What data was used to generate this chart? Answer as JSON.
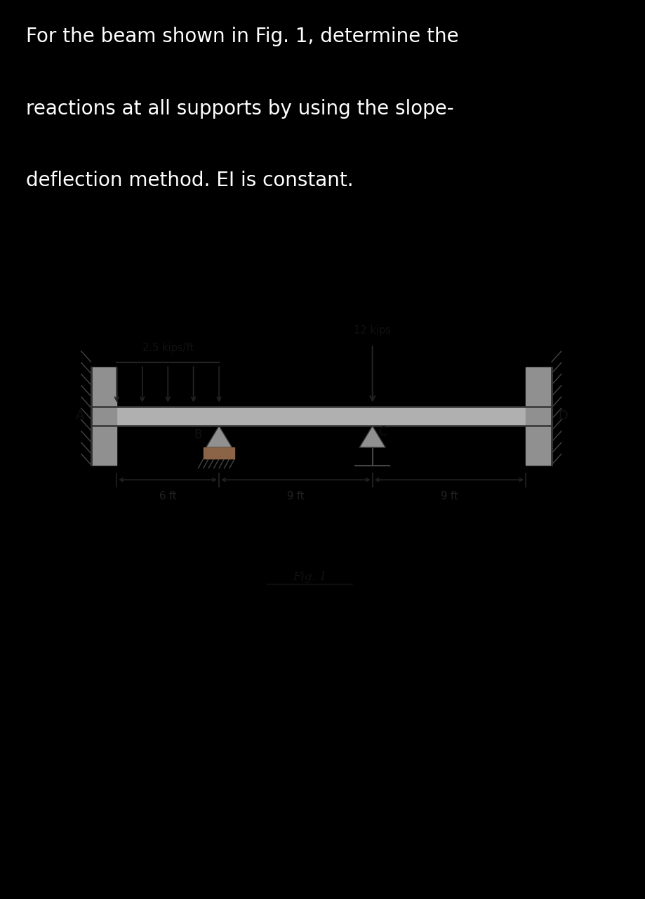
{
  "bg_color": "#000000",
  "text_color": "#ffffff",
  "header_text_line1": "For the beam shown in Fig. 1, determine the",
  "header_text_line2": "reactions at all supports by using the slope-",
  "header_text_line3": "deflection method. EI is constant.",
  "header_fontsize": 20,
  "diagram_bg": "#d4cfc9",
  "beam_color": "#999999",
  "wall_color_A": "#808080",
  "wall_color_D": "#808080",
  "fig_caption": "Fig. 1",
  "dist_load_label": "2.5 kips/ft",
  "point_load_label": "12 kips",
  "label_A": "A",
  "label_B": "B",
  "label_C": "C",
  "label_D": "D",
  "dim_AB": "6 ft",
  "dim_BC": "9 ft",
  "dim_CD": "9 ft",
  "label_color": "#111111",
  "line_color": "#222222",
  "support_color": "#888888",
  "roller_color": "#7a5c3a"
}
